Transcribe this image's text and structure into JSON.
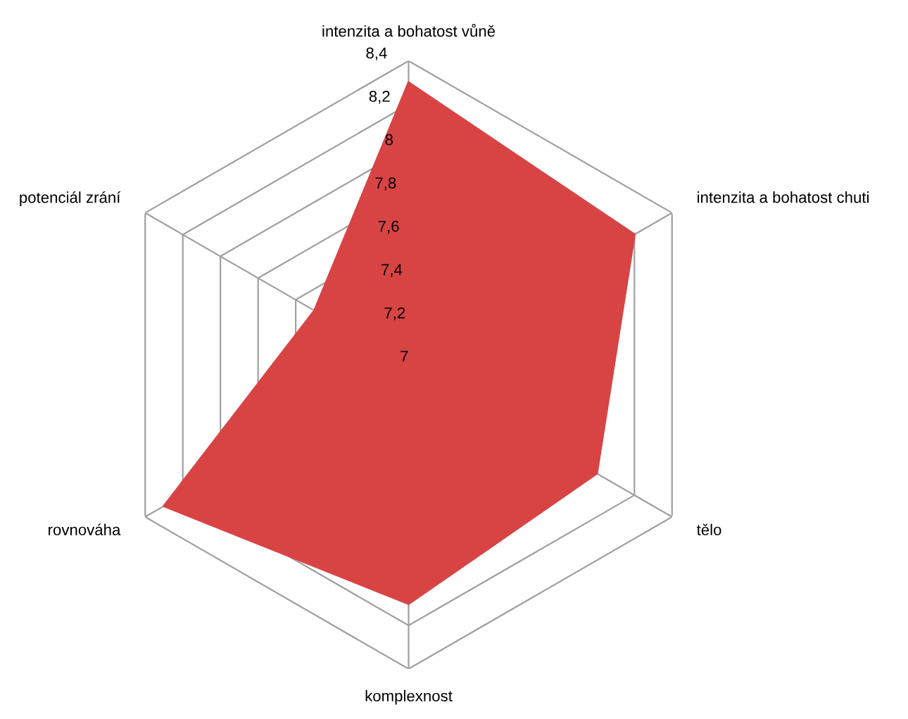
{
  "chart_data": {
    "type": "radar",
    "categories": [
      "intenzita a bohatost vůně",
      "intenzita a bohatost chuti",
      "tělo",
      "komplexnost",
      "rovnováha",
      "potenciál zrání"
    ],
    "series": [
      {
        "color": "#d84444",
        "values": [
          8.3,
          8.2,
          8.0,
          8.1,
          8.3,
          7.5
        ]
      }
    ],
    "ylim": [
      7,
      8.4
    ],
    "yticks": [
      {
        "value": 7,
        "label": "7"
      },
      {
        "value": 7.2,
        "label": "7,2"
      },
      {
        "value": 7.4,
        "label": "7,4"
      },
      {
        "value": 7.6,
        "label": "7,6"
      },
      {
        "value": 7.8,
        "label": "7,8"
      },
      {
        "value": 8,
        "label": "8"
      },
      {
        "value": 8.2,
        "label": "8,2"
      },
      {
        "value": 8.4,
        "label": "8,4"
      }
    ],
    "grid": true,
    "legend": false
  }
}
